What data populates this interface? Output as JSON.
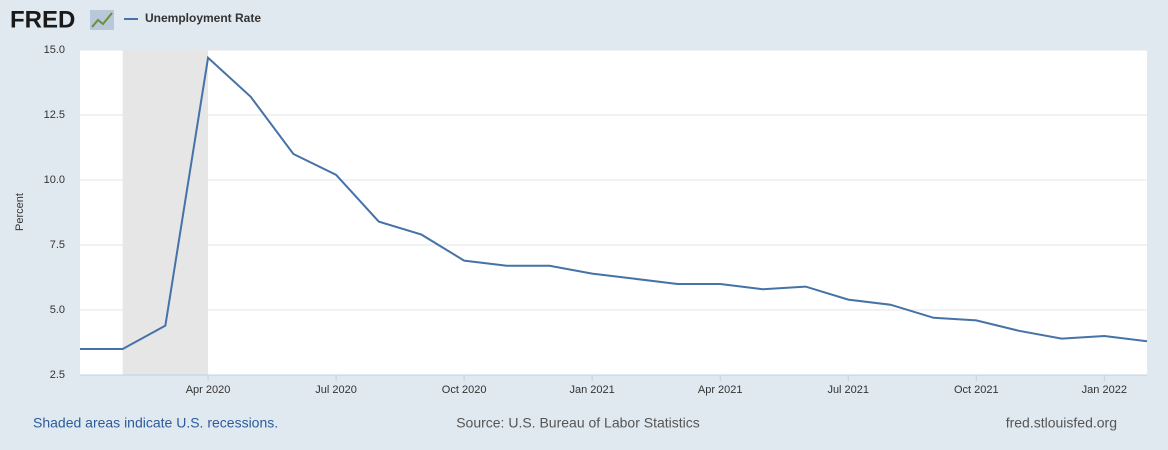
{
  "logo": "FRED",
  "chart_data": {
    "type": "line",
    "y_label": "Percent",
    "x": [
      "2020-01",
      "2020-02",
      "2020-03",
      "2020-04",
      "2020-05",
      "2020-06",
      "2020-07",
      "2020-08",
      "2020-09",
      "2020-10",
      "2020-11",
      "2020-12",
      "2021-01",
      "2021-02",
      "2021-03",
      "2021-04",
      "2021-05",
      "2021-06",
      "2021-07",
      "2021-08",
      "2021-09",
      "2021-10",
      "2021-11",
      "2021-12",
      "2022-01",
      "2022-02"
    ],
    "series": [
      {
        "name": "Unemployment Rate",
        "color": "#4572a7",
        "values": [
          3.5,
          3.5,
          4.4,
          14.7,
          13.2,
          11.0,
          10.2,
          8.4,
          7.9,
          6.9,
          6.7,
          6.7,
          6.4,
          6.2,
          6.0,
          6.0,
          5.8,
          5.9,
          5.4,
          5.2,
          4.7,
          4.6,
          4.2,
          3.9,
          4.0,
          3.8
        ]
      }
    ],
    "xlim": [
      "2020-01",
      "2022-02"
    ],
    "xticks": [
      {
        "value": "2020-04",
        "label": "Apr 2020"
      },
      {
        "value": "2020-07",
        "label": "Jul 2020"
      },
      {
        "value": "2020-10",
        "label": "Oct 2020"
      },
      {
        "value": "2021-01",
        "label": "Jan 2021"
      },
      {
        "value": "2021-04",
        "label": "Apr 2021"
      },
      {
        "value": "2021-07",
        "label": "Jul 2021"
      },
      {
        "value": "2021-10",
        "label": "Oct 2021"
      },
      {
        "value": "2022-01",
        "label": "Jan 2022"
      }
    ],
    "ylim": [
      2.5,
      15
    ],
    "yticks": [
      2.5,
      {
        "value": 5,
        "label": "5.0"
      },
      {
        "value": 7.5,
        "label": "7.5"
      },
      {
        "value": 10,
        "label": "10.0"
      },
      12.5,
      {
        "value": 15,
        "label": "15.0"
      }
    ],
    "grid": true,
    "recessions": [
      {
        "start": "2020-02",
        "end": "2020-04"
      }
    ],
    "recession_color": "#e6e6e6"
  },
  "footer": {
    "note": "Shaded areas indicate U.S. recessions.",
    "source": "Source: U.S. Bureau of Labor Statistics",
    "site": "fred.stlouisfed.org"
  }
}
